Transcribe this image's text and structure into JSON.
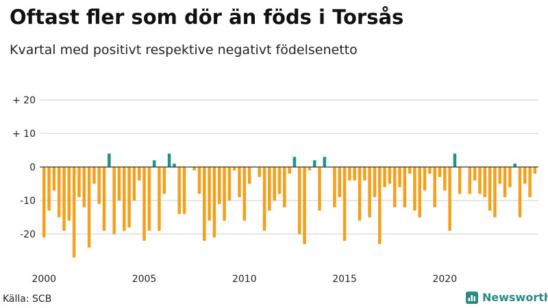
{
  "chart_data": {
    "type": "bar",
    "title": "Oftast fler som dör än föds i Torsås",
    "subtitle": "Kvartal med positivt respektive negativt födelsenetto",
    "xlabel": "",
    "ylabel": "",
    "ylim": [
      -28,
      22
    ],
    "y_ticks": [
      {
        "value": 20,
        "label": "+ 20"
      },
      {
        "value": 10,
        "label": "+ 10"
      },
      {
        "value": 0,
        "label": "0"
      },
      {
        "value": -10,
        "label": "-10"
      },
      {
        "value": -20,
        "label": "-20"
      }
    ],
    "x_ticks": [
      {
        "index": 0,
        "label": "2000"
      },
      {
        "index": 20,
        "label": "2005"
      },
      {
        "index": 40,
        "label": "2010"
      },
      {
        "index": 60,
        "label": "2015"
      },
      {
        "index": 80,
        "label": "2020"
      }
    ],
    "start_year": 2000,
    "quarters_per_year": 4,
    "positive_color": "#1f9484",
    "negative_color": "#f5a01a",
    "grid": true,
    "values": [
      -21,
      -13,
      -7,
      -15,
      -19,
      -16,
      -27,
      -9,
      -12,
      -24,
      -5,
      -11,
      -19,
      4,
      -20,
      -10,
      -19,
      -18,
      -10,
      -4,
      -22,
      -19,
      2,
      -19,
      -8,
      4,
      1,
      -14,
      -14,
      0,
      -1,
      -8,
      -22,
      -16,
      -21,
      -11,
      -16,
      -10,
      -1,
      -9,
      -16,
      -5,
      0,
      -3,
      -19,
      -13,
      -10,
      -8,
      -12,
      -2,
      3,
      -20,
      -23,
      -1,
      2,
      -13,
      3,
      0,
      -12,
      -9,
      -22,
      -4,
      -4,
      -16,
      -4,
      -15,
      -9,
      -23,
      -6,
      -5,
      -12,
      -6,
      -12,
      -2,
      -13,
      -15,
      -7,
      -2,
      -12,
      -3,
      -7,
      -19,
      4,
      -8,
      0,
      -8,
      -4,
      -8,
      -9,
      -13,
      -15,
      -5,
      -9,
      -6,
      1,
      -15,
      -5,
      -9,
      -2
    ]
  },
  "footer": {
    "source": "Källa: SCB",
    "brand": "Newsworthy"
  },
  "colors": {
    "grid": "#cccccc",
    "zero_line": "#333333",
    "brand": "#2a8a7f"
  }
}
